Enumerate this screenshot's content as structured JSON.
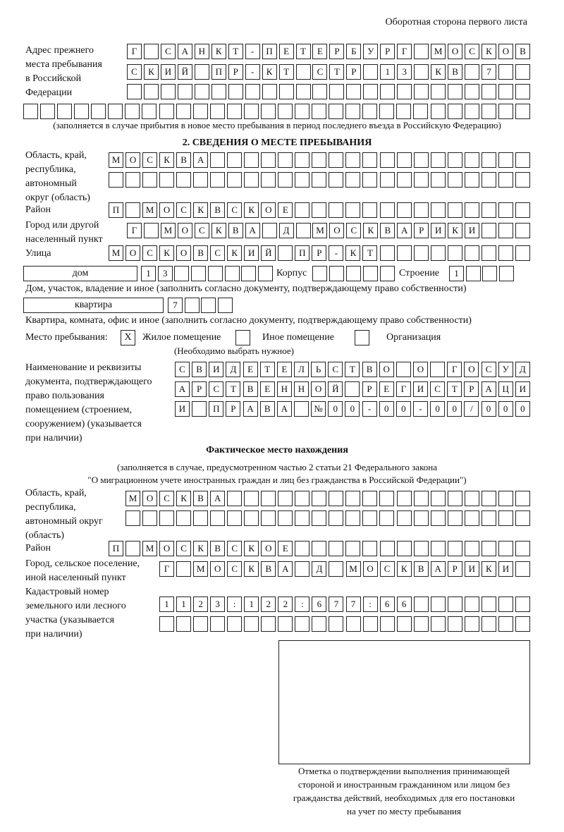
{
  "header": "Оборотная сторона первого листа",
  "previous_address": {
    "label": [
      "Адрес прежнего",
      "места пребывания",
      "в Российской",
      "Федерации"
    ],
    "rows": [
      [
        "Г",
        "",
        "С",
        "А",
        "Н",
        "К",
        "Т",
        "-",
        "П",
        "Е",
        "Т",
        "Е",
        "Р",
        "Б",
        "У",
        "Р",
        "Г",
        "",
        "М",
        "О",
        "С",
        "К",
        "О",
        "В"
      ],
      [
        "С",
        "К",
        "И",
        "Й",
        "",
        "П",
        "Р",
        "-",
        "К",
        "Т",
        "",
        "С",
        "Т",
        "Р",
        "",
        "1",
        "3",
        "",
        "К",
        "В",
        "",
        "7",
        "",
        ""
      ],
      [
        "",
        "",
        "",
        "",
        "",
        "",
        "",
        "",
        "",
        "",
        "",
        "",
        "",
        "",
        "",
        "",
        "",
        "",
        "",
        "",
        "",
        "",
        "",
        ""
      ],
      [
        "",
        "",
        "",
        "",
        "",
        "",
        "",
        "",
        "",
        "",
        "",
        "",
        "",
        "",
        "",
        "",
        "",
        "",
        "",
        "",
        "",
        "",
        "",
        "",
        "",
        "",
        "",
        "",
        "",
        ""
      ]
    ],
    "note": "(заполняется в случае прибытия в новое место пребывания в период последнего въезда в Российскую Федерацию)"
  },
  "section2": {
    "title": "2. СВЕДЕНИЯ О МЕСТЕ ПРЕБЫВАНИЯ",
    "region_label": [
      "Область, край,",
      "республика,",
      "автономный",
      "округ (область)"
    ],
    "region_rows": [
      [
        "М",
        "О",
        "С",
        "К",
        "В",
        "А",
        "",
        "",
        "",
        "",
        "",
        "",
        "",
        "",
        "",
        "",
        "",
        "",
        "",
        "",
        "",
        "",
        "",
        "",
        ""
      ],
      [
        "",
        "",
        "",
        "",
        "",
        "",
        "",
        "",
        "",
        "",
        "",
        "",
        "",
        "",
        "",
        "",
        "",
        "",
        "",
        "",
        "",
        "",
        "",
        "",
        ""
      ]
    ],
    "district_label": "Район",
    "district": [
      "П",
      "",
      "М",
      "О",
      "С",
      "К",
      "В",
      "С",
      "К",
      "О",
      "Е",
      "",
      "",
      "",
      "",
      "",
      "",
      "",
      "",
      "",
      "",
      "",
      "",
      "",
      ""
    ],
    "city_label": [
      "Город или другой",
      "населенный пункт"
    ],
    "city": [
      "Г",
      "",
      "М",
      "О",
      "С",
      "К",
      "В",
      "А",
      "",
      "Д",
      "",
      "М",
      "О",
      "С",
      "К",
      "В",
      "А",
      "Р",
      "И",
      "К",
      "И",
      "",
      "",
      ""
    ],
    "street_label": "Улица",
    "street": [
      "М",
      "О",
      "С",
      "К",
      "О",
      "В",
      "С",
      "К",
      "И",
      "Й",
      "",
      "П",
      "Р",
      "-",
      "К",
      "Т",
      "",
      "",
      "",
      "",
      "",
      "",
      "",
      "",
      ""
    ],
    "house_type": "дом",
    "house": [
      "1",
      "3",
      "",
      "",
      "",
      "",
      "",
      ""
    ],
    "korpus_label": "Корпус",
    "korpus": [
      "",
      "",
      "",
      "",
      ""
    ],
    "stroenie_label": "Строение",
    "stroenie": [
      "1",
      "",
      "",
      ""
    ],
    "house_note": "Дом, участок, владение и иное (заполнить согласно документу, подтверждающему право собственности)",
    "flat_type": "квартира",
    "flat": [
      "7",
      "",
      "",
      ""
    ],
    "flat_note": "Квартира, комната, офис и иное (заполнить согласно документу, подтверждающему право собственности)",
    "stay_label": "Место пребывания:",
    "stay_options": [
      {
        "label": "Жилое помещение",
        "mark": "X"
      },
      {
        "label": "Иное помещение",
        "mark": ""
      },
      {
        "label": "Организация",
        "mark": ""
      }
    ],
    "stay_note": "(Необходимо выбрать нужное)",
    "doc_label": [
      "Наименование и реквизиты",
      "документа, подтверждающего",
      "право пользования",
      "помещением (строением,",
      "сооружением) (указывается",
      "при наличии)"
    ],
    "doc_rows": [
      [
        "С",
        "В",
        "И",
        "Д",
        "Е",
        "Т",
        "Е",
        "Л",
        "Ь",
        "С",
        "Т",
        "В",
        "О",
        "",
        "О",
        "",
        "Г",
        "О",
        "С",
        "У",
        "Д"
      ],
      [
        "А",
        "Р",
        "С",
        "Т",
        "В",
        "Е",
        "Н",
        "Н",
        "О",
        "Й",
        "",
        "Р",
        "Е",
        "Г",
        "И",
        "С",
        "Т",
        "Р",
        "А",
        "Ц",
        "И"
      ],
      [
        "И",
        "",
        "П",
        "Р",
        "А",
        "В",
        "А",
        "",
        "№",
        "0",
        "0",
        "-",
        "0",
        "0",
        "-",
        "0",
        "0",
        "/",
        "0",
        "0",
        "0"
      ]
    ]
  },
  "actual": {
    "title": "Фактическое место нахождения",
    "note": [
      "(заполняется в случае, предусмотренном частью 2 статьи 21 Федерального закона",
      "\"О миграционном учете иностранных граждан и лиц без гражданства в Российской Федерации\")"
    ],
    "region_label": [
      "Область, край,",
      "республика,",
      "автономный округ",
      "(область)"
    ],
    "region_rows": [
      [
        "М",
        "О",
        "С",
        "К",
        "В",
        "А",
        "",
        "",
        "",
        "",
        "",
        "",
        "",
        "",
        "",
        "",
        "",
        "",
        "",
        "",
        "",
        "",
        "",
        ""
      ],
      [
        "",
        "",
        "",
        "",
        "",
        "",
        "",
        "",
        "",
        "",
        "",
        "",
        "",
        "",
        "",
        "",
        "",
        "",
        "",
        "",
        "",
        "",
        "",
        ""
      ]
    ],
    "district_label": "Район",
    "district": [
      "П",
      "",
      "М",
      "О",
      "С",
      "К",
      "В",
      "С",
      "К",
      "О",
      "Е",
      "",
      "",
      "",
      "",
      "",
      "",
      "",
      "",
      "",
      "",
      "",
      "",
      "",
      ""
    ],
    "city_label": [
      "Город, сельское поселение,",
      "иной населенный пункт"
    ],
    "city": [
      "Г",
      "",
      "М",
      "О",
      "С",
      "К",
      "В",
      "А",
      "",
      "Д",
      "",
      "М",
      "О",
      "С",
      "К",
      "В",
      "А",
      "Р",
      "И",
      "К",
      "И",
      ""
    ],
    "cadastre_label": [
      "Кадастровый номер",
      "земельного или лесного",
      "участка (указывается",
      "при наличии)"
    ],
    "cadastre_rows": [
      [
        "1",
        "1",
        "2",
        "3",
        ":",
        "1",
        "2",
        "2",
        ":",
        "6",
        "7",
        "7",
        ":",
        "6",
        "6",
        "",
        "",
        "",
        "",
        "",
        "",
        ""
      ],
      [
        "",
        "",
        "",
        "",
        "",
        "",
        "",
        "",
        "",
        "",
        "",
        "",
        "",
        "",
        "",
        "",
        "",
        "",
        "",
        "",
        "",
        ""
      ]
    ]
  },
  "stamp_caption": [
    "Отметка о подтверждении выполнения принимающей",
    "стороной и иностранным гражданином или лицом без",
    "гражданства действий, необходимых для его постановки",
    "на учет по месту пребывания"
  ]
}
